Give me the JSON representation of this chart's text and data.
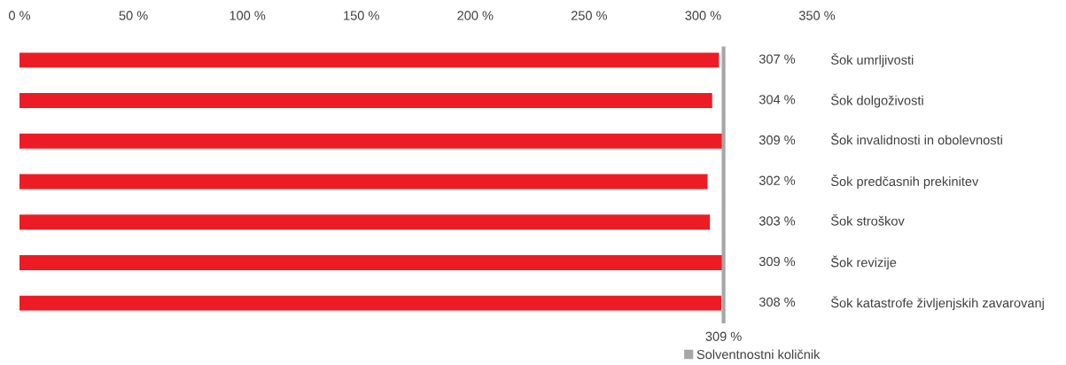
{
  "chart_data": {
    "type": "bar",
    "orientation": "horizontal",
    "categories": [
      "Šok umrljivosti",
      "Šok dolgoživosti",
      "Šok invalidnosti in obolevnosti",
      "Šok predčasnih prekinitev",
      "Šok stroškov",
      "Šok revizije",
      "Šok katastrofe življenjskih zavarovanj"
    ],
    "values": [
      307,
      304,
      309,
      302,
      303,
      309,
      308
    ],
    "value_labels": [
      "307 %",
      "304 %",
      "309 %",
      "302 %",
      "303 %",
      "309 %",
      "308 %"
    ],
    "color": "#ed1c24",
    "xlim": [
      0,
      350
    ],
    "xticks": [
      {
        "value": 0,
        "label": "0 %"
      },
      {
        "value": 50,
        "label": "50 %"
      },
      {
        "value": 100,
        "label": "100 %"
      },
      {
        "value": 150,
        "label": "150 %"
      },
      {
        "value": 200,
        "label": "200 %"
      },
      {
        "value": 250,
        "label": "250 %"
      },
      {
        "value": 300,
        "label": "300 %"
      },
      {
        "value": 350,
        "label": "350 %"
      }
    ],
    "ref_lines": [
      {
        "axis": "x",
        "value": 309,
        "label": "309 %",
        "color": "#a6a6a6"
      }
    ],
    "annotations": [
      "Solventnostni količnik"
    ],
    "grid": false,
    "legend": "bottom"
  }
}
